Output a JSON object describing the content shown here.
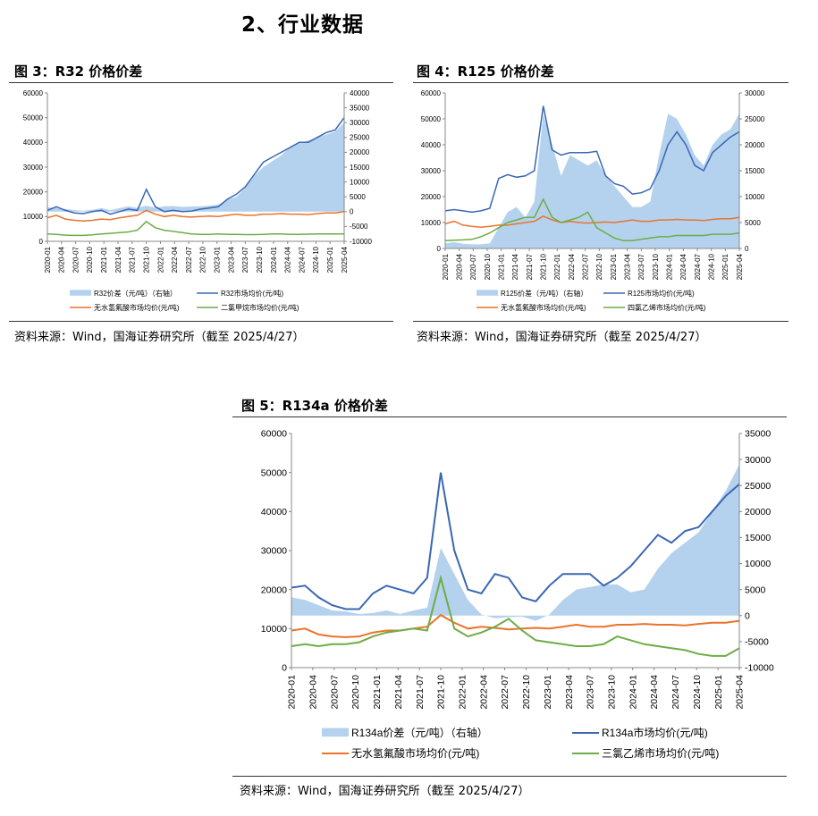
{
  "section_heading": "2、行业数据",
  "figures": [
    {
      "title": "图 3：R32 价格价差",
      "source": "资料来源：Wind，国海证券研究所（截至 2025/4/27）"
    },
    {
      "title": "图 4：R125 价格价差",
      "source": "资料来源：Wind，国海证券研究所（截至 2025/4/27）"
    },
    {
      "title": "图 5：R134a 价格价差",
      "source": "资料来源：Wind，国海证券研究所（截至 2025/4/27）"
    }
  ],
  "colors": {
    "spread": "#b4d2ee",
    "product": "#3a67b2",
    "hf": "#e8742a",
    "third": "#6fac46"
  },
  "chart_data": [
    {
      "type": "line",
      "ylim": [
        0,
        60000
      ],
      "y2lim": [
        -10000,
        40000
      ],
      "yticks": [
        0,
        10000,
        20000,
        30000,
        40000,
        50000,
        60000
      ],
      "y2ticks": [
        -10000,
        -5000,
        0,
        5000,
        10000,
        15000,
        20000,
        25000,
        30000,
        35000,
        40000
      ],
      "xticks": [
        "2020-01",
        "2020-04",
        "2020-07",
        "2020-10",
        "2021-01",
        "2021-04",
        "2021-07",
        "2021-10",
        "2022-01",
        "2022-04",
        "2022-07",
        "2022-10",
        "2023-01",
        "2023-04",
        "2023-07",
        "2023-10",
        "2024-01",
        "2024-04",
        "2024-07",
        "2024-10",
        "2025-01",
        "2025-04"
      ],
      "series": [
        {
          "name": "R32价差（元/吨）（右轴）",
          "axis": "right",
          "kind": "area",
          "values": [
            1500,
            1200,
            900,
            500,
            300,
            600,
            1200,
            500,
            1200,
            1800,
            1300,
            2000,
            1300,
            1800,
            1900,
            1600,
            1700,
            1800,
            2000,
            2400,
            4000,
            5000,
            8000,
            12000,
            15000,
            17000,
            19000,
            22000,
            23000,
            24000,
            25000,
            26000,
            27000,
            30000
          ]
        },
        {
          "name": "R32市场均价(元/吨)",
          "axis": "left",
          "kind": "line",
          "values": [
            12500,
            14000,
            12500,
            11500,
            11200,
            12000,
            12500,
            11000,
            12000,
            13000,
            12500,
            21000,
            14000,
            12000,
            12500,
            12000,
            12200,
            13000,
            13500,
            14000,
            17000,
            19000,
            22000,
            27000,
            32000,
            34000,
            36000,
            38000,
            40000,
            40000,
            42000,
            44000,
            45000,
            50000
          ]
        },
        {
          "name": "无水氢氟酸市场均价(元/吨)",
          "axis": "left",
          "kind": "line",
          "values": [
            9500,
            10500,
            9000,
            8500,
            8200,
            8500,
            9000,
            8800,
            9500,
            10000,
            10500,
            12500,
            11000,
            10000,
            10500,
            10000,
            9800,
            10000,
            10200,
            10000,
            10500,
            11000,
            10500,
            10500,
            11000,
            11000,
            11200,
            11000,
            11000,
            10800,
            11200,
            11500,
            11500,
            12000
          ]
        },
        {
          "name": "二氯甲烷市场均价(元/吨)",
          "axis": "left",
          "kind": "line",
          "values": [
            3000,
            2800,
            2500,
            2400,
            2400,
            2600,
            3000,
            3200,
            3500,
            3800,
            4500,
            8000,
            5500,
            4500,
            4000,
            3500,
            3000,
            2800,
            2800,
            3000,
            2800,
            2800,
            2700,
            2700,
            2800,
            3000,
            3000,
            2800,
            2800,
            2900,
            3000,
            3000,
            3000,
            3000
          ]
        }
      ],
      "legend": [
        [
          "R32价差（元/吨）（右轴）",
          "R32市场均价(元/吨)"
        ],
        [
          "无水氢氟酸市场均价(元/吨)",
          "二氯甲烷市场均价(元/吨)"
        ]
      ]
    },
    {
      "type": "line",
      "ylim": [
        0,
        60000
      ],
      "y2lim": [
        0,
        30000
      ],
      "yticks": [
        0,
        10000,
        20000,
        30000,
        40000,
        50000,
        60000
      ],
      "y2ticks": [
        0,
        5000,
        10000,
        15000,
        20000,
        25000,
        30000
      ],
      "xticks": [
        "2020-01",
        "2020-04",
        "2020-07",
        "2020-10",
        "2021-01",
        "2021-04",
        "2021-07",
        "2021-10",
        "2022-01",
        "2022-04",
        "2022-07",
        "2022-10",
        "2023-01",
        "2023-04",
        "2023-07",
        "2023-10",
        "2024-01",
        "2024-04",
        "2024-07",
        "2024-10",
        "2025-01",
        "2025-04"
      ],
      "series": [
        {
          "name": "R125价差（元/吨）（右轴）",
          "axis": "right",
          "kind": "area",
          "values": [
            1000,
            1200,
            900,
            800,
            800,
            1000,
            4000,
            7000,
            8000,
            6000,
            9000,
            26000,
            20000,
            14000,
            18000,
            17000,
            16000,
            17000,
            14000,
            12000,
            10000,
            8000,
            8000,
            9000,
            18000,
            26000,
            25000,
            22000,
            18000,
            16000,
            20000,
            22000,
            23000,
            26000
          ]
        },
        {
          "name": "R125市场均价(元/吨)",
          "axis": "left",
          "kind": "line",
          "values": [
            14500,
            15000,
            14500,
            14000,
            14500,
            15500,
            27000,
            28500,
            27500,
            28000,
            30000,
            55000,
            38000,
            36000,
            37000,
            37000,
            37000,
            37500,
            28000,
            25000,
            24000,
            21000,
            21500,
            23000,
            30000,
            40000,
            45000,
            40000,
            32000,
            30000,
            37000,
            40000,
            43000,
            45000
          ]
        },
        {
          "name": "无水氢氟酸市场均价(元/吨)",
          "axis": "left",
          "kind": "line",
          "values": [
            9500,
            10500,
            9000,
            8500,
            8200,
            8500,
            9000,
            9000,
            9500,
            10000,
            10500,
            12500,
            11000,
            10000,
            10500,
            10000,
            9800,
            10000,
            10200,
            10000,
            10500,
            11000,
            10500,
            10500,
            11000,
            11000,
            11200,
            11000,
            11000,
            10800,
            11200,
            11500,
            11500,
            12000
          ]
        },
        {
          "name": "四氯乙烯市场均价(元/吨)",
          "axis": "left",
          "kind": "line",
          "values": [
            3000,
            3200,
            3300,
            3500,
            4500,
            6000,
            8000,
            10000,
            11000,
            12000,
            12000,
            19000,
            12000,
            10000,
            11000,
            12000,
            14000,
            8000,
            6000,
            4000,
            3000,
            3000,
            3500,
            4000,
            4500,
            4500,
            5000,
            5000,
            5000,
            5000,
            5500,
            5500,
            5500,
            6000
          ]
        }
      ],
      "legend": [
        [
          "R125价差（元/吨）（右轴）",
          "R125市场均价(元/吨)"
        ],
        [
          "无水氢氟酸市场均价(元/吨)",
          "四氯乙烯市场均价(元/吨)"
        ]
      ]
    },
    {
      "type": "line",
      "ylim": [
        0,
        60000
      ],
      "y2lim": [
        -10000,
        35000
      ],
      "yticks": [
        0,
        10000,
        20000,
        30000,
        40000,
        50000,
        60000
      ],
      "y2ticks": [
        -10000,
        -5000,
        0,
        5000,
        10000,
        15000,
        20000,
        25000,
        30000,
        35000
      ],
      "xticks": [
        "2020-01",
        "2020-04",
        "2020-07",
        "2020-10",
        "2021-01",
        "2021-04",
        "2021-07",
        "2021-10",
        "2022-01",
        "2022-04",
        "2022-07",
        "2022-10",
        "2023-01",
        "2023-04",
        "2023-07",
        "2023-10",
        "2024-01",
        "2024-04",
        "2024-07",
        "2024-10",
        "2025-01",
        "2025-04"
      ],
      "series": [
        {
          "name": "R134a价差（元/吨）（右轴）",
          "axis": "right",
          "kind": "area",
          "values": [
            3500,
            3000,
            2000,
            1000,
            800,
            300,
            500,
            1000,
            300,
            1000,
            1500,
            13000,
            8000,
            3000,
            200,
            -500,
            -300,
            -200,
            -1000,
            200,
            3000,
            5000,
            5500,
            6000,
            6000,
            4500,
            5000,
            9000,
            12000,
            14000,
            16000,
            20000,
            24000,
            29000
          ]
        },
        {
          "name": "R134a市场均价(元/吨)",
          "axis": "left",
          "kind": "line",
          "values": [
            20500,
            21000,
            18000,
            16000,
            15000,
            15000,
            19000,
            21000,
            20000,
            19000,
            23000,
            50000,
            30000,
            20000,
            19000,
            24000,
            23000,
            18000,
            17000,
            21000,
            24000,
            24000,
            24000,
            21000,
            23000,
            26000,
            30000,
            34000,
            32000,
            35000,
            36000,
            40000,
            44000,
            47000
          ]
        },
        {
          "name": "无水氢氟酸市场均价(元/吨)",
          "axis": "left",
          "kind": "line",
          "values": [
            9500,
            10000,
            8500,
            8000,
            7800,
            8000,
            9000,
            9500,
            9500,
            10000,
            10500,
            13500,
            11500,
            10000,
            10500,
            10200,
            9800,
            10000,
            10200,
            10000,
            10500,
            11000,
            10500,
            10500,
            11000,
            11000,
            11200,
            11000,
            11000,
            10800,
            11200,
            11500,
            11500,
            12000
          ]
        },
        {
          "name": "三氯乙烯市场均价(元/吨)",
          "axis": "left",
          "kind": "line",
          "values": [
            5500,
            6000,
            5500,
            6000,
            6000,
            6500,
            8000,
            9000,
            9500,
            10000,
            9500,
            23000,
            10000,
            8000,
            9000,
            10500,
            12500,
            9500,
            7000,
            6500,
            6000,
            5500,
            5500,
            6000,
            8000,
            7000,
            6000,
            5500,
            5000,
            4500,
            3500,
            3000,
            3000,
            5000
          ]
        }
      ],
      "legend": [
        [
          "R134a价差（元/吨）（右轴）",
          "R134a市场均价(元/吨)"
        ],
        [
          "无水氢氟酸市场均价(元/吨)",
          "三氯乙烯市场均价(元/吨)"
        ]
      ]
    }
  ]
}
